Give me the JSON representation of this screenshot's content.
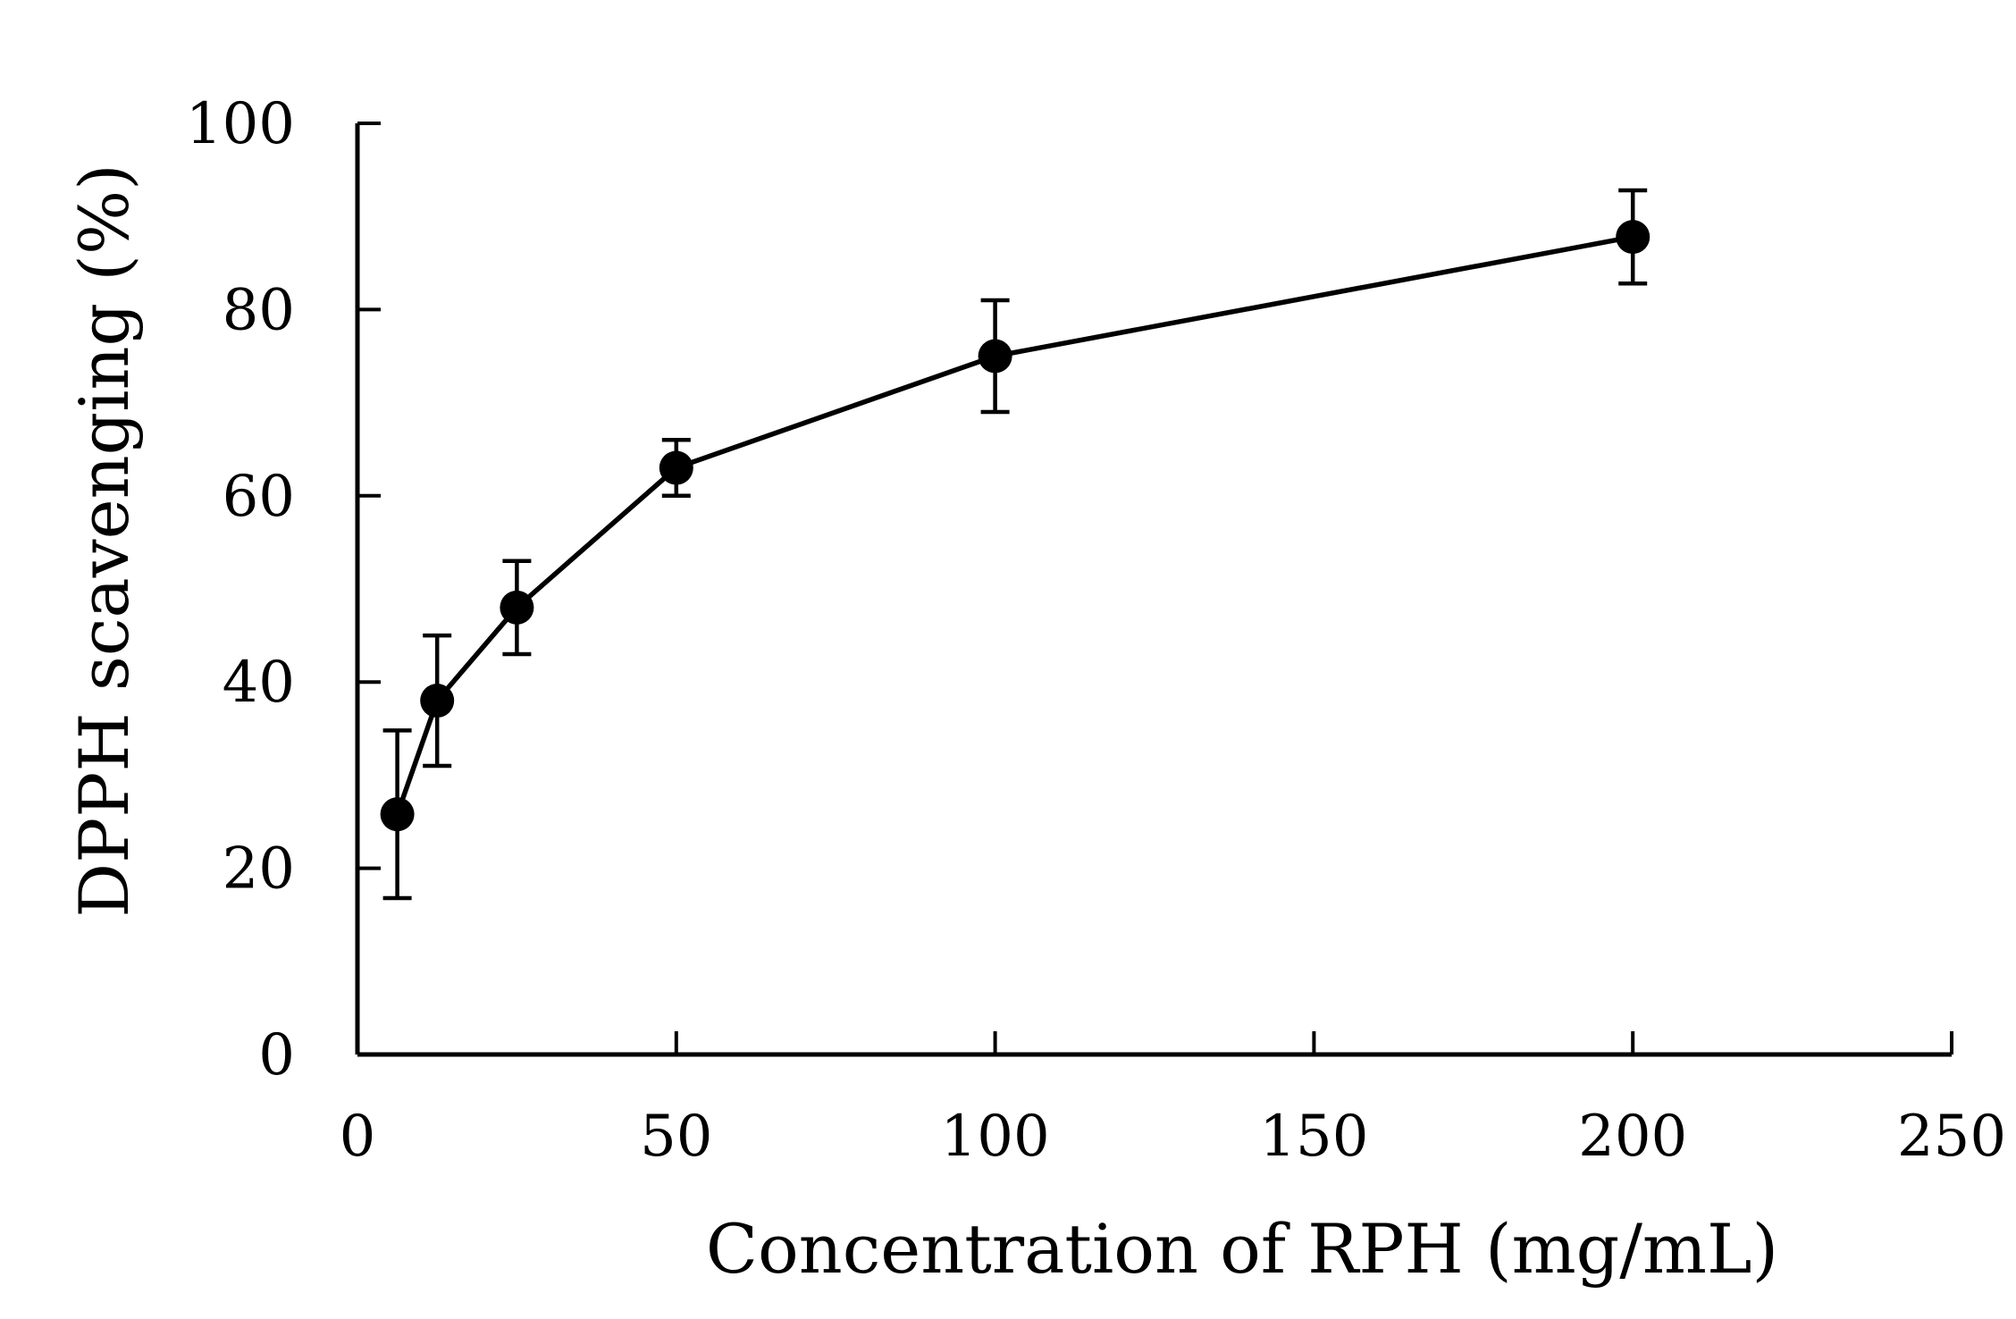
{
  "chart_data": {
    "type": "line",
    "title": "",
    "xlabel": "Concentration of RPH (mg/mL)",
    "ylabel": "DPPH scavenging (%)",
    "xlim": [
      0,
      250
    ],
    "ylim": [
      0,
      100
    ],
    "x_ticks": [
      0,
      50,
      100,
      150,
      200,
      250
    ],
    "y_ticks": [
      0,
      20,
      40,
      60,
      80,
      100
    ],
    "x_tick_labels": [
      "0",
      "50",
      "100",
      "150",
      "200",
      "250"
    ],
    "y_tick_labels": [
      "0",
      "20",
      "40",
      "60",
      "80",
      "100"
    ],
    "grid": false,
    "legend": "none",
    "series": [
      {
        "name": "DPPH scavenging",
        "marker": "filled-circle",
        "color": "#000000",
        "x": [
          6.25,
          12.5,
          25,
          50,
          100,
          200
        ],
        "values": [
          25.8,
          38,
          48,
          63,
          75,
          87.8
        ],
        "error": [
          9,
          7,
          5,
          3,
          6,
          5
        ]
      }
    ]
  }
}
